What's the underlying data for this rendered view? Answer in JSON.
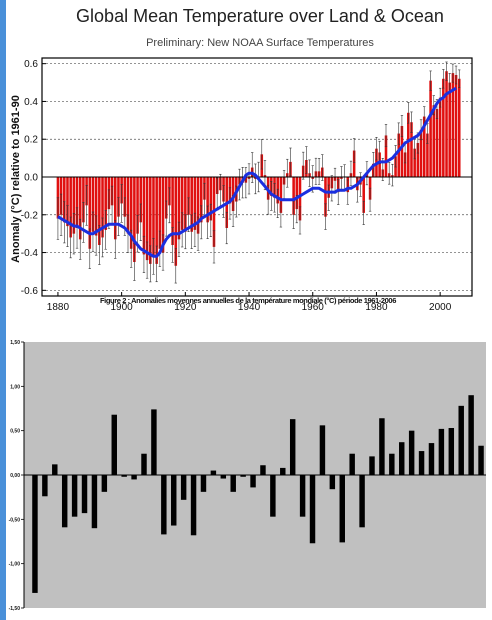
{
  "caption": "Figure 2 : Anomalies moyennes annuelles de la température mondiale (°C) période 1961-2006",
  "accent_color": "#4a90d9",
  "chart_data": [
    {
      "type": "bar",
      "title": "Global Mean Temperature over Land & Ocean",
      "subtitle": "Preliminary: New NOAA Surface Temperatures",
      "ylabel": "Anomaly (°C) relative to 1961-90",
      "xlabel": "",
      "xlim": [
        1875,
        2010
      ],
      "ylim": [
        -0.63,
        0.63
      ],
      "x_ticks": [
        "1880",
        "1900",
        "1920",
        "1940",
        "1960",
        "1980",
        "2000"
      ],
      "y_ticks": [
        "0.6",
        "0.4",
        "0.2",
        "0.0",
        "-0.2",
        "-0.4",
        "-0.6"
      ],
      "grid": "dashed horizontal",
      "bar_color": "#e01010",
      "smooth_color": "#1a2fe0",
      "years_start": 1880,
      "values": [
        -0.22,
        -0.2,
        -0.24,
        -0.26,
        -0.32,
        -0.3,
        -0.27,
        -0.33,
        -0.24,
        -0.15,
        -0.38,
        -0.29,
        -0.31,
        -0.36,
        -0.32,
        -0.28,
        -0.17,
        -0.15,
        -0.33,
        -0.21,
        -0.14,
        -0.21,
        -0.3,
        -0.38,
        -0.45,
        -0.3,
        -0.24,
        -0.41,
        -0.44,
        -0.46,
        -0.42,
        -0.46,
        -0.38,
        -0.4,
        -0.22,
        -0.15,
        -0.36,
        -0.47,
        -0.33,
        -0.28,
        -0.29,
        -0.2,
        -0.29,
        -0.28,
        -0.3,
        -0.24,
        -0.12,
        -0.24,
        -0.23,
        -0.37,
        -0.09,
        -0.07,
        -0.13,
        -0.27,
        -0.14,
        -0.18,
        -0.13,
        -0.04,
        -0.03,
        -0.03,
        -0.01,
        0.05,
        -0.01,
        0.0,
        0.12,
        0.01,
        -0.12,
        -0.1,
        -0.11,
        -0.14,
        -0.19,
        -0.04,
        0.02,
        0.08,
        -0.2,
        -0.17,
        -0.23,
        0.06,
        0.09,
        0.02,
        -0.01,
        0.03,
        0.03,
        0.05,
        -0.21,
        -0.11,
        -0.06,
        -0.02,
        -0.08,
        -0.01,
        0.0,
        -0.08,
        0.02,
        0.14,
        -0.07,
        -0.04,
        -0.19,
        0.02,
        -0.12,
        0.07,
        0.15,
        0.13,
        0.04,
        0.22,
        0.02,
        0.01,
        0.11,
        0.23,
        0.27,
        0.13,
        0.34,
        0.29,
        0.15,
        0.18,
        0.25,
        0.32,
        0.23,
        0.51,
        0.38,
        0.36,
        0.42,
        0.52,
        0.56,
        0.5,
        0.55,
        0.54,
        0.52
      ],
      "smooth": [
        -0.21,
        -0.22,
        -0.23,
        -0.24,
        -0.25,
        -0.26,
        -0.26,
        -0.27,
        -0.28,
        -0.29,
        -0.3,
        -0.3,
        -0.29,
        -0.28,
        -0.27,
        -0.26,
        -0.25,
        -0.25,
        -0.25,
        -0.25,
        -0.26,
        -0.27,
        -0.29,
        -0.31,
        -0.34,
        -0.36,
        -0.38,
        -0.39,
        -0.4,
        -0.41,
        -0.42,
        -0.42,
        -0.4,
        -0.36,
        -0.33,
        -0.31,
        -0.3,
        -0.3,
        -0.3,
        -0.29,
        -0.28,
        -0.27,
        -0.26,
        -0.25,
        -0.24,
        -0.22,
        -0.21,
        -0.2,
        -0.19,
        -0.18,
        -0.17,
        -0.16,
        -0.15,
        -0.14,
        -0.13,
        -0.11,
        -0.08,
        -0.05,
        -0.02,
        0.01,
        0.02,
        0.02,
        0.01,
        -0.01,
        -0.03,
        -0.05,
        -0.07,
        -0.09,
        -0.1,
        -0.11,
        -0.12,
        -0.12,
        -0.12,
        -0.12,
        -0.12,
        -0.11,
        -0.1,
        -0.09,
        -0.08,
        -0.07,
        -0.06,
        -0.06,
        -0.06,
        -0.07,
        -0.08,
        -0.08,
        -0.08,
        -0.08,
        -0.07,
        -0.07,
        -0.07,
        -0.06,
        -0.06,
        -0.05,
        -0.04,
        -0.02,
        0.0,
        0.02,
        0.04,
        0.06,
        0.07,
        0.08,
        0.08,
        0.08,
        0.09,
        0.1,
        0.12,
        0.14,
        0.16,
        0.18,
        0.19,
        0.2,
        0.21,
        0.22,
        0.24,
        0.27,
        0.3,
        0.33,
        0.36,
        0.39,
        0.41,
        0.42,
        0.44,
        0.45,
        0.46,
        0.47
      ]
    },
    {
      "type": "bar",
      "title": "",
      "xlabel": "",
      "ylabel": "",
      "ylim": [
        -1.5,
        1.5
      ],
      "y_ticks": [
        "1,50",
        "1,00",
        "0,50",
        "0,00",
        "-0,50",
        "-1,00",
        "-1,50"
      ],
      "background": "#c0c0c0",
      "bar_color": "#000000",
      "values": [
        -1.33,
        -0.24,
        0.12,
        -0.59,
        -0.47,
        -0.43,
        -0.6,
        -0.19,
        0.68,
        -0.02,
        -0.05,
        0.24,
        0.74,
        -0.67,
        -0.57,
        -0.28,
        -0.68,
        -0.19,
        0.05,
        -0.04,
        -0.19,
        -0.02,
        -0.14,
        0.11,
        -0.47,
        0.08,
        0.63,
        -0.47,
        -0.77,
        0.56,
        -0.16,
        -0.76,
        0.24,
        -0.59,
        0.21,
        0.64,
        0.24,
        0.37,
        0.5,
        0.27,
        0.36,
        0.52,
        0.53,
        0.78,
        0.9,
        0.33
      ]
    }
  ]
}
